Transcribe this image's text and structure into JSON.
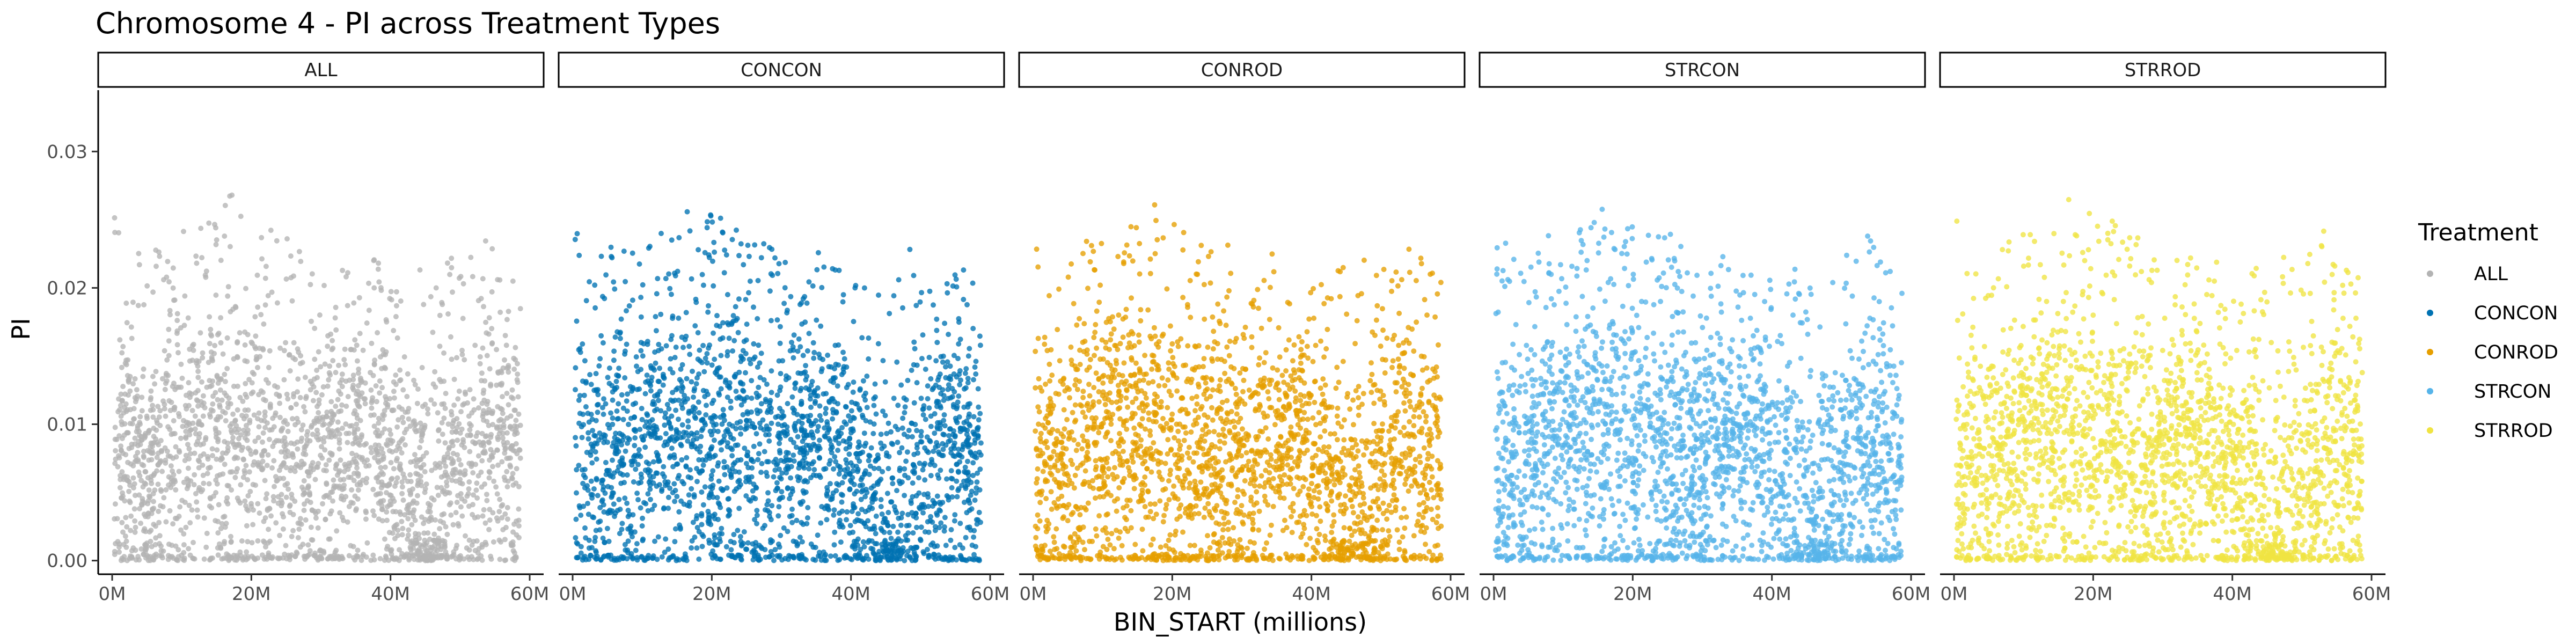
{
  "chart_data": {
    "type": "scatter",
    "title": "Chromosome 4 - PI across Treatment Types",
    "xlabel": "BIN_START (millions)",
    "ylabel": "PI",
    "xlim": [
      0,
      60
    ],
    "ylim": [
      -0.001,
      0.0345
    ],
    "x_ticks": [
      0,
      20,
      40,
      60
    ],
    "x_tick_labels": [
      "0M",
      "20M",
      "40M",
      "60M"
    ],
    "y_ticks": [
      0.0,
      0.01,
      0.02,
      0.03
    ],
    "y_tick_labels": [
      "0.00",
      "0.01",
      "0.02",
      "0.03"
    ],
    "grid": false,
    "legend": {
      "title": "Treatment",
      "position": "right"
    },
    "facet_by": "Treatment",
    "series": [
      {
        "name": "ALL",
        "color": "#B3B3B3"
      },
      {
        "name": "CONCON",
        "color": "#0072B2"
      },
      {
        "name": "CONROD",
        "color": "#E69F00"
      },
      {
        "name": "STRCON",
        "color": "#56B4E9"
      },
      {
        "name": "STRROD",
        "color": "#F0E442"
      }
    ],
    "profile": {
      "x_million": [
        0.5,
        2,
        5,
        8,
        11,
        14,
        17,
        20,
        23,
        26,
        29,
        32,
        35,
        38,
        41,
        44,
        46,
        48,
        50,
        53,
        56,
        58.5
      ],
      "y_median": [
        0.006,
        0.0075,
        0.0075,
        0.0085,
        0.0095,
        0.01,
        0.0095,
        0.009,
        0.0085,
        0.008,
        0.0075,
        0.0085,
        0.0095,
        0.009,
        0.0065,
        0.005,
        0.0025,
        0.004,
        0.0065,
        0.0085,
        0.0085,
        0.0075
      ],
      "y_max": [
        0.0255,
        0.023,
        0.023,
        0.024,
        0.0245,
        0.025,
        0.027,
        0.0255,
        0.025,
        0.024,
        0.023,
        0.022,
        0.023,
        0.022,
        0.02,
        0.0225,
        0.02,
        0.0235,
        0.022,
        0.0245,
        0.022,
        0.021
      ],
      "zero_fraction": 0.07,
      "points_per_panel": 2400
    }
  }
}
